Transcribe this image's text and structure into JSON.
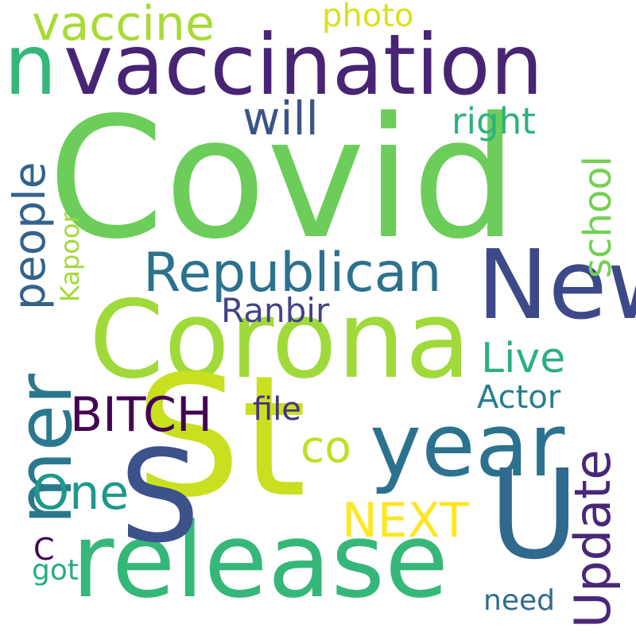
{
  "words": [
    {
      "text": "Covid",
      "color": "#6ccd5a"
    },
    {
      "text": "Corona",
      "color": "#9fda3a"
    },
    {
      "text": "release",
      "color": "#35b779"
    },
    {
      "text": "year",
      "color": "#2c728e"
    },
    {
      "text": "vaccination",
      "color": "#482475"
    },
    {
      "text": "New",
      "color": "#3e4989"
    },
    {
      "text": "St",
      "color": "#c8e020"
    },
    {
      "text": "S",
      "color": "#3b528b"
    },
    {
      "text": "U",
      "color": "#31688e"
    },
    {
      "text": "mer",
      "color": "#2a788e"
    },
    {
      "text": "Republican",
      "color": "#2c728e"
    },
    {
      "text": "Update",
      "color": "#482878"
    },
    {
      "text": "vaccine",
      "color": "#a8db34"
    },
    {
      "text": "people",
      "color": "#33638d"
    },
    {
      "text": "BITCH",
      "color": "#440154"
    },
    {
      "text": "NEXT",
      "color": "#fde725"
    },
    {
      "text": "One",
      "color": "#1f988b"
    },
    {
      "text": "will",
      "color": "#3b528b"
    },
    {
      "text": "school",
      "color": "#75d054"
    },
    {
      "text": "Live",
      "color": "#2ab07f"
    },
    {
      "text": "Actor",
      "color": "#287d8e"
    },
    {
      "text": "co",
      "color": "#c2df23"
    },
    {
      "text": "right",
      "color": "#2db27d"
    },
    {
      "text": "photo",
      "color": "#d8e219"
    },
    {
      "text": "Ranbir",
      "color": "#414487"
    },
    {
      "text": "need",
      "color": "#2f6c8e"
    },
    {
      "text": "got",
      "color": "#26ad81"
    },
    {
      "text": "file",
      "color": "#46337e"
    },
    {
      "text": "Kapoor",
      "color": "#a2da37"
    },
    {
      "text": "n",
      "color": "#35b779"
    },
    {
      "text": "C",
      "color": "#440154"
    }
  ]
}
